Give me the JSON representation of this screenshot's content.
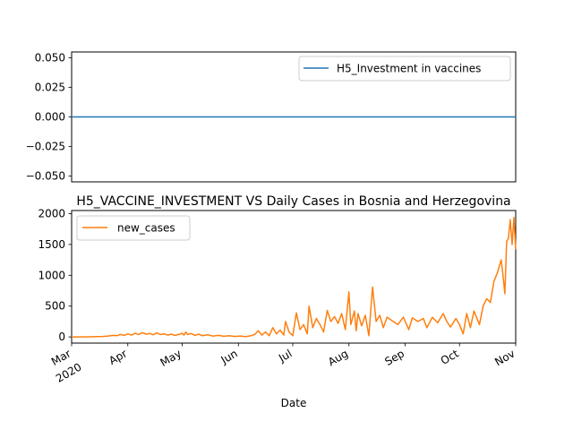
{
  "chart_data": [
    {
      "type": "line",
      "title": "",
      "xlabel": "",
      "ylabel": "",
      "x_range": [
        "2020-03-01",
        "2020-11-01"
      ],
      "ylim": [
        -0.055,
        0.055
      ],
      "yticks": [
        "0.050",
        "0.025",
        "0.000",
        "−0.025",
        "−0.050"
      ],
      "legend_position": "upper-right",
      "series": [
        {
          "name": "H5_Investment in vaccines",
          "color": "#1f77b4",
          "constant_value": 0.0
        }
      ]
    },
    {
      "type": "line",
      "title": "H5_VACCINE_INVESTMENT VS Daily Cases in Bosnia and Herzegovina",
      "xlabel": "Date",
      "ylabel": "",
      "x_range": [
        "2020-03-01",
        "2020-11-01"
      ],
      "ylim": [
        -100,
        2050
      ],
      "yticks": [
        "0",
        "500",
        "1000",
        "1500",
        "2000"
      ],
      "xticks": [
        "Mar",
        "Apr",
        "May",
        "Jun",
        "Jul",
        "Aug",
        "Sep",
        "Oct",
        "Nov"
      ],
      "xtick_year": "2020",
      "legend_position": "upper-left",
      "series": [
        {
          "name": "new_cases",
          "color": "#ff7f0e",
          "points": [
            [
              "2020-03-01",
              0
            ],
            [
              "2020-03-05",
              0
            ],
            [
              "2020-03-10",
              2
            ],
            [
              "2020-03-15",
              4
            ],
            [
              "2020-03-18",
              8
            ],
            [
              "2020-03-21",
              15
            ],
            [
              "2020-03-24",
              25
            ],
            [
              "2020-03-26",
              20
            ],
            [
              "2020-03-28",
              40
            ],
            [
              "2020-03-30",
              25
            ],
            [
              "2020-04-01",
              50
            ],
            [
              "2020-04-03",
              30
            ],
            [
              "2020-04-05",
              60
            ],
            [
              "2020-04-07",
              40
            ],
            [
              "2020-04-09",
              70
            ],
            [
              "2020-04-11",
              45
            ],
            [
              "2020-04-13",
              55
            ],
            [
              "2020-04-15",
              35
            ],
            [
              "2020-04-17",
              65
            ],
            [
              "2020-04-19",
              40
            ],
            [
              "2020-04-21",
              50
            ],
            [
              "2020-04-23",
              30
            ],
            [
              "2020-04-25",
              45
            ],
            [
              "2020-04-27",
              25
            ],
            [
              "2020-04-29",
              40
            ],
            [
              "2020-05-01",
              60
            ],
            [
              "2020-05-02",
              30
            ],
            [
              "2020-05-03",
              80
            ],
            [
              "2020-05-04",
              40
            ],
            [
              "2020-05-06",
              55
            ],
            [
              "2020-05-08",
              25
            ],
            [
              "2020-05-10",
              45
            ],
            [
              "2020-05-12",
              20
            ],
            [
              "2020-05-15",
              35
            ],
            [
              "2020-05-18",
              15
            ],
            [
              "2020-05-21",
              25
            ],
            [
              "2020-05-24",
              10
            ],
            [
              "2020-05-27",
              20
            ],
            [
              "2020-05-30",
              8
            ],
            [
              "2020-06-02",
              15
            ],
            [
              "2020-06-05",
              5
            ],
            [
              "2020-06-08",
              20
            ],
            [
              "2020-06-10",
              40
            ],
            [
              "2020-06-12",
              100
            ],
            [
              "2020-06-14",
              30
            ],
            [
              "2020-06-16",
              80
            ],
            [
              "2020-06-18",
              20
            ],
            [
              "2020-06-20",
              150
            ],
            [
              "2020-06-22",
              50
            ],
            [
              "2020-06-24",
              110
            ],
            [
              "2020-06-26",
              30
            ],
            [
              "2020-06-27",
              250
            ],
            [
              "2020-06-29",
              80
            ],
            [
              "2020-07-01",
              20
            ],
            [
              "2020-07-03",
              390
            ],
            [
              "2020-07-05",
              120
            ],
            [
              "2020-07-07",
              200
            ],
            [
              "2020-07-09",
              50
            ],
            [
              "2020-07-10",
              500
            ],
            [
              "2020-07-12",
              150
            ],
            [
              "2020-07-14",
              300
            ],
            [
              "2020-07-16",
              200
            ],
            [
              "2020-07-18",
              80
            ],
            [
              "2020-07-20",
              430
            ],
            [
              "2020-07-22",
              250
            ],
            [
              "2020-07-24",
              330
            ],
            [
              "2020-07-26",
              220
            ],
            [
              "2020-07-28",
              380
            ],
            [
              "2020-07-30",
              120
            ],
            [
              "2020-08-01",
              730
            ],
            [
              "2020-08-02",
              200
            ],
            [
              "2020-08-04",
              420
            ],
            [
              "2020-08-05",
              100
            ],
            [
              "2020-08-06",
              380
            ],
            [
              "2020-08-08",
              180
            ],
            [
              "2020-08-10",
              350
            ],
            [
              "2020-08-12",
              20
            ],
            [
              "2020-08-14",
              810
            ],
            [
              "2020-08-16",
              250
            ],
            [
              "2020-08-18",
              350
            ],
            [
              "2020-08-20",
              150
            ],
            [
              "2020-08-22",
              320
            ],
            [
              "2020-08-25",
              260
            ],
            [
              "2020-08-28",
              200
            ],
            [
              "2020-08-31",
              320
            ],
            [
              "2020-09-03",
              120
            ],
            [
              "2020-09-05",
              310
            ],
            [
              "2020-09-08",
              250
            ],
            [
              "2020-09-11",
              300
            ],
            [
              "2020-09-13",
              150
            ],
            [
              "2020-09-16",
              320
            ],
            [
              "2020-09-19",
              230
            ],
            [
              "2020-09-22",
              380
            ],
            [
              "2020-09-24",
              250
            ],
            [
              "2020-09-26",
              160
            ],
            [
              "2020-09-29",
              300
            ],
            [
              "2020-10-01",
              200
            ],
            [
              "2020-10-03",
              50
            ],
            [
              "2020-10-05",
              380
            ],
            [
              "2020-10-07",
              150
            ],
            [
              "2020-10-09",
              420
            ],
            [
              "2020-10-12",
              200
            ],
            [
              "2020-10-14",
              500
            ],
            [
              "2020-10-16",
              620
            ],
            [
              "2020-10-18",
              560
            ],
            [
              "2020-10-20",
              900
            ],
            [
              "2020-10-22",
              1050
            ],
            [
              "2020-10-24",
              1250
            ],
            [
              "2020-10-25",
              1000
            ],
            [
              "2020-10-26",
              700
            ],
            [
              "2020-10-27",
              1550
            ],
            [
              "2020-10-28",
              1600
            ],
            [
              "2020-10-29",
              1900
            ],
            [
              "2020-10-30",
              1500
            ],
            [
              "2020-10-31",
              1940
            ],
            [
              "2020-11-01",
              1420
            ]
          ]
        }
      ]
    }
  ]
}
